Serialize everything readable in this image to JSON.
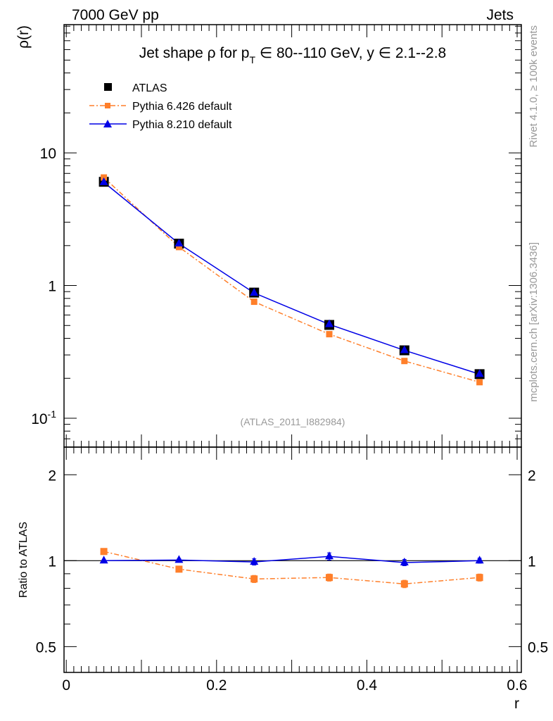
{
  "chart_data": [
    {
      "type": "line",
      "title": "Jet shape ρ for p_T ∈ 80--110 GeV, y ∈ 2.1--2.8",
      "title_parts": {
        "pre": "Jet shape ρ for p",
        "sub": "T",
        "post": " ∈ 80--110 GeV, y ∈ 2.1--2.8"
      },
      "top_left_label": "7000 GeV pp",
      "top_right_label": "Jets",
      "side_label_1": "Rivet 4.1.0, ≥ 100k events",
      "side_label_2": "mcplots.cern.ch [arXiv:1306.3436]",
      "watermark": "(ATLAS_2011_I882984)",
      "xlabel": "r",
      "ylabel": "ρ(r)",
      "yscale": "log",
      "xlim": [
        -0.003,
        0.6056
      ],
      "ylim": [
        0.0606,
        92.5
      ],
      "xticks": [
        "0",
        "0.2",
        "0.4",
        "0.6"
      ],
      "yticks": [
        "10",
        "1",
        "10^-1"
      ],
      "legend": [
        "ATLAS",
        "Pythia 6.426 default",
        "Pythia 8.210 default"
      ],
      "legend_position": "top-left",
      "x": [
        0.05,
        0.15,
        0.25,
        0.35,
        0.45,
        0.55
      ],
      "series": [
        {
          "name": "ATLAS",
          "color": "#000000",
          "values": [
            6.05,
            2.07,
            0.885,
            0.505,
            0.325,
            0.215
          ]
        },
        {
          "name": "Pythia 6.426 default",
          "color": "#ff7f2a",
          "values": [
            6.52,
            1.95,
            0.755,
            0.43,
            0.27,
            0.187
          ]
        },
        {
          "name": "Pythia 8.210 default",
          "color": "#0000e6",
          "values": [
            6.0,
            2.07,
            0.88,
            0.51,
            0.325,
            0.215
          ]
        }
      ]
    },
    {
      "type": "line",
      "ylabel": "Ratio to ATLAS",
      "yscale": "log",
      "ylim": [
        0.406,
        2.5
      ],
      "yticks": [
        "2",
        "1",
        "0.5"
      ],
      "xlabel": "r",
      "x": [
        0.05,
        0.15,
        0.25,
        0.35,
        0.45,
        0.55
      ],
      "series": [
        {
          "name": "Pythia 6.426 default",
          "color": "#ff7f2a",
          "values": [
            1.077,
            0.934,
            0.863,
            0.873,
            0.829,
            0.873
          ],
          "errors": [
            0.01,
            0.02,
            0.025,
            0.025,
            0.025,
            0.025
          ]
        },
        {
          "name": "Pythia 8.210 default",
          "color": "#0000e6",
          "values": [
            1.0,
            1.005,
            0.99,
            1.035,
            0.985,
            1.0
          ],
          "errors": [
            0.005,
            0.01,
            0.025,
            0.03,
            0.025,
            0.02
          ]
        }
      ]
    }
  ]
}
